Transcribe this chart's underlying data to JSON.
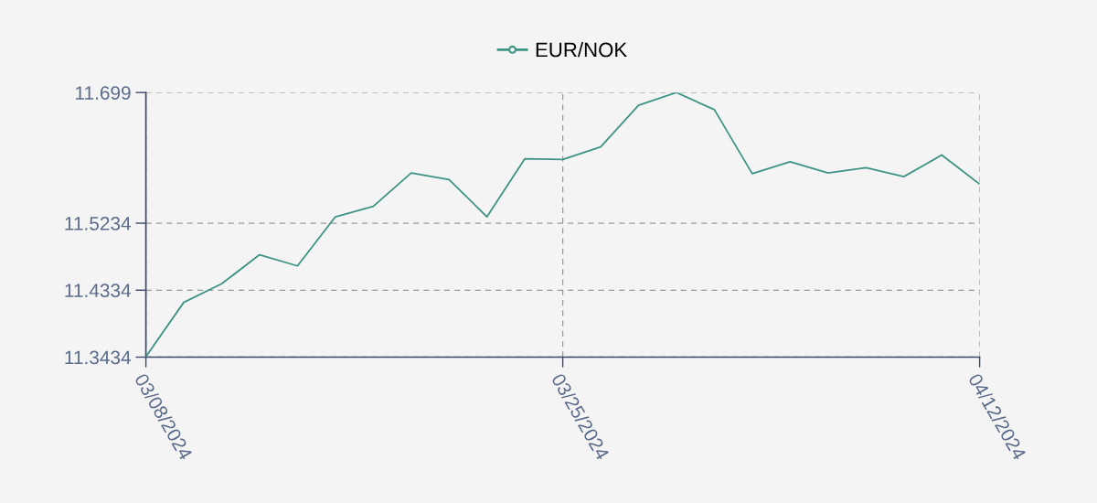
{
  "chart_data": {
    "type": "line",
    "categories": [
      "03/08/2024",
      null,
      null,
      null,
      null,
      null,
      null,
      null,
      null,
      null,
      null,
      "03/25/2024",
      null,
      null,
      null,
      null,
      null,
      null,
      null,
      null,
      null,
      null,
      "04/12/2024"
    ],
    "series": [
      {
        "name": "EUR/NOK",
        "color": "#3d9484",
        "values": [
          11.344,
          11.417,
          11.442,
          11.481,
          11.466,
          11.532,
          11.546,
          11.591,
          11.582,
          11.532,
          11.61,
          11.609,
          11.626,
          11.682,
          11.699,
          11.676,
          11.59,
          11.606,
          11.591,
          11.598,
          11.586,
          11.615,
          11.576
        ]
      }
    ],
    "ylim": [
      11.3434,
      11.699
    ],
    "yticks": [
      11.3434,
      11.4334,
      11.5234,
      11.699
    ],
    "grid": true,
    "legend": "top"
  }
}
